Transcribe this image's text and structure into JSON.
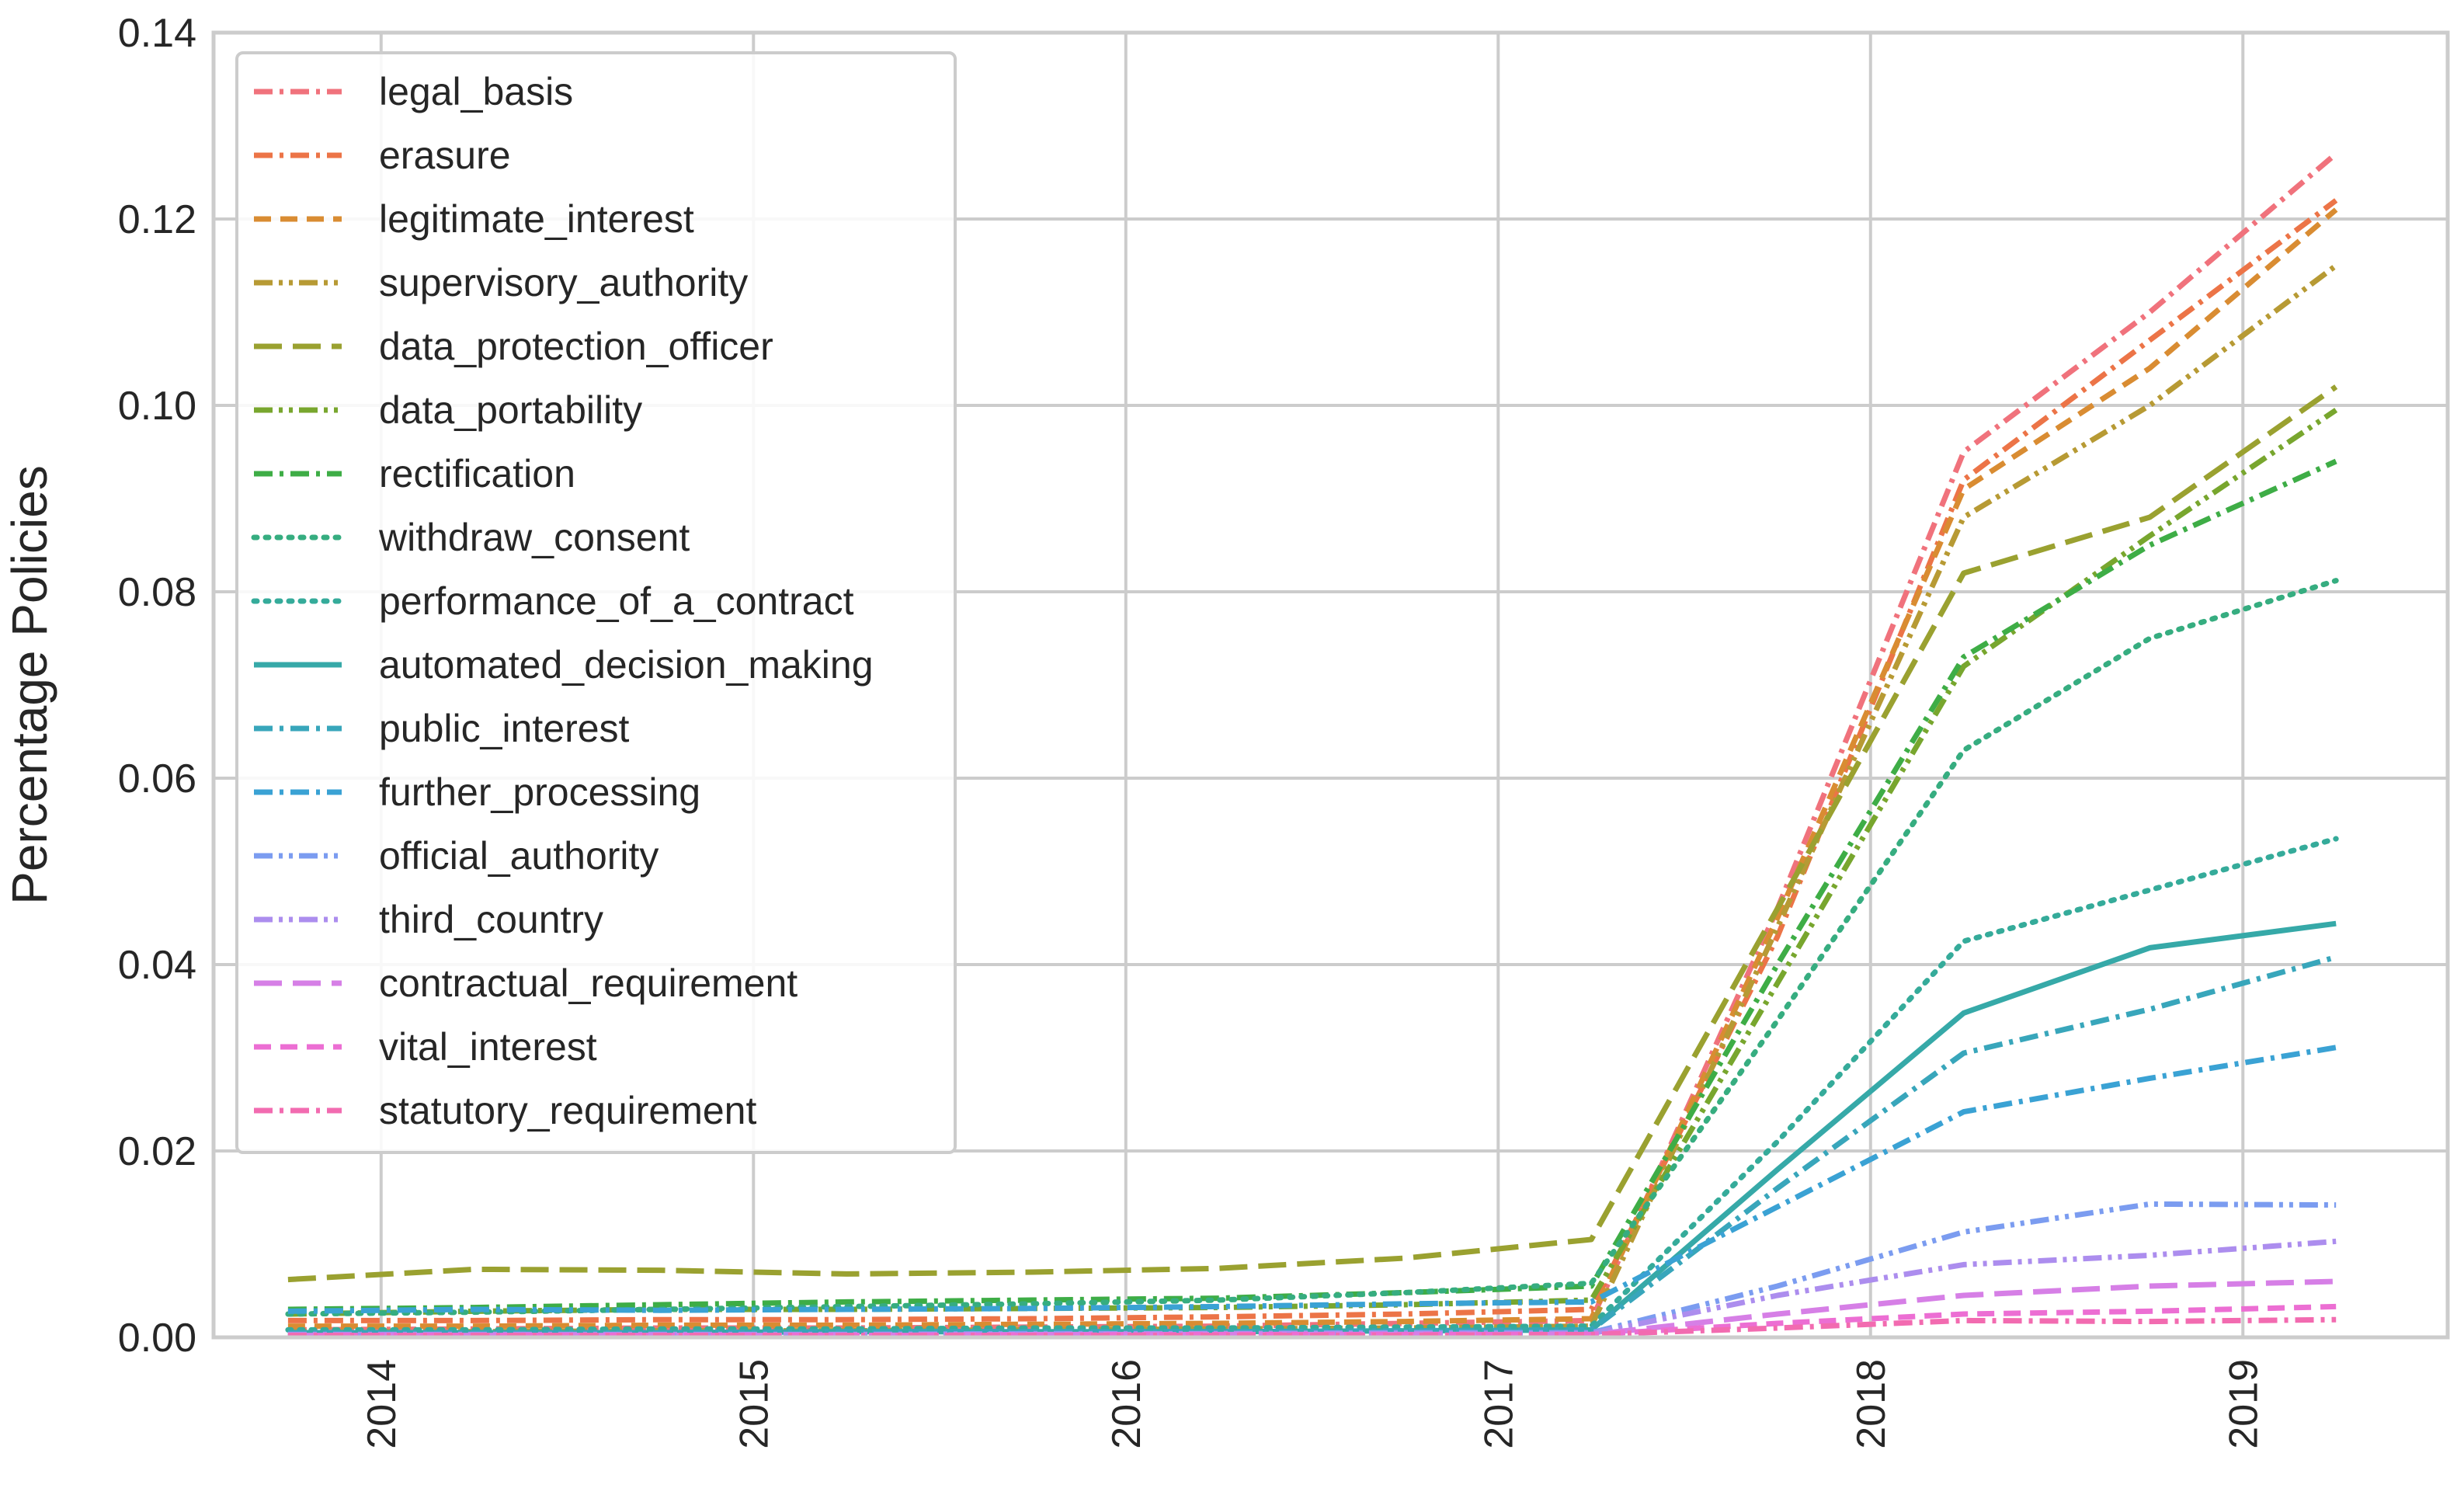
{
  "chart_data": {
    "type": "line",
    "title": "",
    "xlabel": "",
    "ylabel": "Percentage Policies",
    "xlim": [
      2013.55,
      2019.55
    ],
    "ylim": [
      0,
      0.14
    ],
    "grid": true,
    "legend_position": "upper-left",
    "x_ticks": [
      2014,
      2015,
      2016,
      2017,
      2018,
      2019
    ],
    "x_tick_labels": [
      "2014",
      "2015",
      "2016",
      "2017",
      "2018",
      "2019"
    ],
    "y_ticks": [
      0,
      0.02,
      0.04,
      0.06,
      0.08,
      0.1,
      0.12,
      0.14
    ],
    "y_tick_labels": [
      "0.00",
      "0.02",
      "0.04",
      "0.06",
      "0.08",
      "0.10",
      "0.12",
      "0.14"
    ],
    "x": [
      2013.75,
      2014.25,
      2014.75,
      2015.25,
      2015.75,
      2016.25,
      2016.75,
      2017.25,
      2017.75,
      2018.25,
      2018.75,
      2019.25
    ],
    "series": [
      {
        "name": "legal_basis",
        "color": "#f0727c",
        "dash": "dashdot",
        "values": [
          0.0008,
          0.0009,
          0.001,
          0.001,
          0.0011,
          0.0012,
          0.0015,
          0.0018,
          0.046,
          0.095,
          0.11,
          0.127
        ]
      },
      {
        "name": "erasure",
        "color": "#ec7447",
        "dash": "dashdot",
        "values": [
          0.0018,
          0.0018,
          0.0019,
          0.0019,
          0.002,
          0.0022,
          0.0025,
          0.003,
          0.043,
          0.092,
          0.107,
          0.122
        ]
      },
      {
        "name": "legitimate_interest",
        "color": "#d98c32",
        "dash": "dash",
        "values": [
          0.0012,
          0.0012,
          0.0013,
          0.0013,
          0.0014,
          0.0015,
          0.0017,
          0.002,
          0.045,
          0.091,
          0.104,
          0.121
        ]
      },
      {
        "name": "supervisory_authority",
        "color": "#b79a34",
        "dash": "dashdotdot",
        "values": [
          0.0006,
          0.0006,
          0.0007,
          0.0007,
          0.0008,
          0.0009,
          0.001,
          0.0012,
          0.044,
          0.088,
          0.1,
          0.115
        ]
      },
      {
        "name": "data_protection_officer",
        "color": "#9aa130",
        "dash": "longdash",
        "values": [
          0.0062,
          0.0073,
          0.0072,
          0.0068,
          0.007,
          0.0074,
          0.0085,
          0.0105,
          0.046,
          0.082,
          0.088,
          0.102
        ]
      },
      {
        "name": "data_portability",
        "color": "#78a62e",
        "dash": "dashdotdot",
        "values": [
          0.0025,
          0.0028,
          0.003,
          0.003,
          0.0031,
          0.0032,
          0.0035,
          0.004,
          0.038,
          0.072,
          0.086,
          0.0995
        ]
      },
      {
        "name": "rectification",
        "color": "#3ead46",
        "dash": "dashdot",
        "values": [
          0.003,
          0.0032,
          0.0035,
          0.0038,
          0.004,
          0.0042,
          0.0048,
          0.0055,
          0.04,
          0.073,
          0.085,
          0.094
        ]
      },
      {
        "name": "withdraw_consent",
        "color": "#36ad80",
        "dash": "dot",
        "values": [
          0.0025,
          0.0027,
          0.003,
          0.0033,
          0.0036,
          0.004,
          0.0048,
          0.0058,
          0.034,
          0.063,
          0.075,
          0.0812
        ]
      },
      {
        "name": "performance_of_a_contract",
        "color": "#35ab9a",
        "dash": "dot",
        "values": [
          0.0008,
          0.0008,
          0.0009,
          0.0009,
          0.001,
          0.001,
          0.0011,
          0.0012,
          0.021,
          0.0425,
          0.048,
          0.0535
        ]
      },
      {
        "name": "automated_decision_making",
        "color": "#36a9a8",
        "dash": "solid",
        "values": [
          0.0005,
          0.0005,
          0.0005,
          0.0006,
          0.0006,
          0.0006,
          0.0007,
          0.0008,
          0.018,
          0.0348,
          0.0418,
          0.0444
        ]
      },
      {
        "name": "public_interest",
        "color": "#38a6bb",
        "dash": "dashdot",
        "values": [
          0.0005,
          0.0005,
          0.0005,
          0.0006,
          0.0006,
          0.0006,
          0.0007,
          0.0008,
          0.016,
          0.0305,
          0.0352,
          0.0408
        ]
      },
      {
        "name": "further_processing",
        "color": "#3aa2d4",
        "dash": "dashdot",
        "values": [
          0.0028,
          0.003,
          0.0029,
          0.003,
          0.0031,
          0.0033,
          0.0036,
          0.0038,
          0.014,
          0.0242,
          0.0278,
          0.0311
        ]
      },
      {
        "name": "official_authority",
        "color": "#7b9cf0",
        "dash": "dashdotdot",
        "values": [
          0.0003,
          0.0003,
          0.0003,
          0.0003,
          0.0004,
          0.0004,
          0.0005,
          0.0005,
          0.0055,
          0.0113,
          0.0143,
          0.0142
        ]
      },
      {
        "name": "third_country",
        "color": "#ac8dee",
        "dash": "dashdotdot",
        "values": [
          0.0003,
          0.0003,
          0.0003,
          0.0003,
          0.0003,
          0.0004,
          0.0004,
          0.0004,
          0.0045,
          0.0078,
          0.0088,
          0.0103
        ]
      },
      {
        "name": "contractual_requirement",
        "color": "#d67fe6",
        "dash": "longdash",
        "values": [
          0.0002,
          0.0002,
          0.0002,
          0.0002,
          0.0003,
          0.0003,
          0.0003,
          0.0003,
          0.0025,
          0.0045,
          0.0055,
          0.006
        ]
      },
      {
        "name": "vital_interest",
        "color": "#ec6ed3",
        "dash": "dash",
        "values": [
          0.0002,
          0.0002,
          0.0002,
          0.0002,
          0.0002,
          0.0003,
          0.0003,
          0.0003,
          0.0015,
          0.0025,
          0.0028,
          0.0033
        ]
      },
      {
        "name": "statutory_requirement",
        "color": "#f26bb0",
        "dash": "dashdot",
        "values": [
          0.0002,
          0.0002,
          0.0002,
          0.0002,
          0.0002,
          0.0002,
          0.0002,
          0.0003,
          0.001,
          0.0018,
          0.0017,
          0.0019
        ]
      }
    ]
  }
}
